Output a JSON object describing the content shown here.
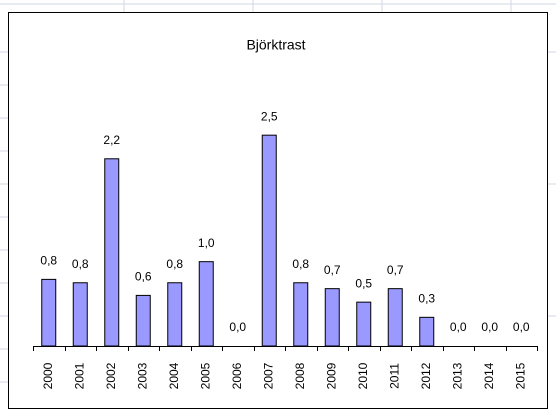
{
  "chart_data": {
    "type": "bar",
    "title": "Björktrast",
    "categories": [
      "2000",
      "2001",
      "2002",
      "2003",
      "2004",
      "2005",
      "2006",
      "2007",
      "2008",
      "2009",
      "2010",
      "2011",
      "2012",
      "2013",
      "2014",
      "2015"
    ],
    "values": [
      0.79,
      0.75,
      2.22,
      0.6,
      0.75,
      1.0,
      0,
      2.5,
      0.75,
      0.68,
      0.52,
      0.68,
      0.34,
      0,
      0,
      0
    ],
    "value_labels": [
      "0,8",
      "0,8",
      "2,2",
      "0,6",
      "0,8",
      "1,0",
      "0,0",
      "2,5",
      "0,8",
      "0,7",
      "0,5",
      "0,7",
      "0,3",
      "0,0",
      "0,0",
      "0,0"
    ],
    "color": "#9999ff",
    "ylim": [
      0,
      3
    ]
  }
}
